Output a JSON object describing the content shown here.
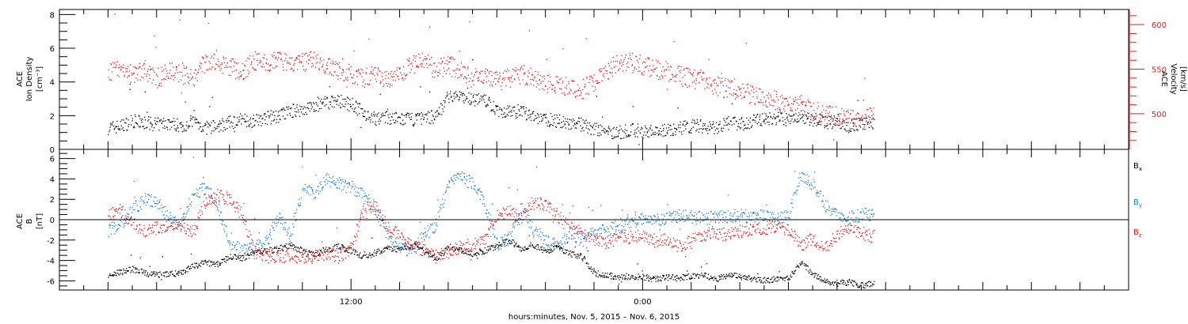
{
  "chart_data": [
    {
      "type": "scatter",
      "panel": "plasma",
      "ylabel": [
        "ACE",
        "Ion Density",
        "[cm⁻³]"
      ],
      "ylim": [
        0,
        8.3
      ],
      "yticks": [
        "0",
        "2",
        "4",
        "6",
        "8"
      ],
      "y2label": [
        "ACE",
        "Velocity",
        "[km/s]"
      ],
      "y2lim": [
        460,
        617
      ],
      "y2ticks": [
        "500",
        "550",
        "600"
      ],
      "grid": false,
      "series": [
        {
          "color": "#000000",
          "axis": "left",
          "x": [
            0,
            0.5,
            1,
            1.5,
            2,
            2.5,
            3,
            3.5,
            4,
            4.5,
            5,
            5.5,
            6,
            6.5,
            7,
            7.5,
            8,
            8.5,
            9,
            9.5,
            10,
            10.5,
            11,
            11.5,
            12,
            12.5,
            13,
            13.5,
            14,
            14.5,
            15,
            15.5,
            16,
            16.5,
            17,
            17.5,
            18,
            18.5,
            19,
            19.5,
            20,
            20.5,
            21,
            21.5,
            22,
            22.5,
            23,
            23.5,
            24,
            24.5,
            25,
            25.5,
            26,
            26.5,
            27,
            27.5,
            28,
            28.5,
            29,
            29.5,
            30,
            30.5,
            31,
            31.5
          ],
          "y": [
            1.3,
            1.4,
            1.7,
            1.6,
            1.5,
            1.6,
            1.4,
            1.7,
            1.3,
            1.4,
            1.6,
            1.8,
            1.7,
            1.9,
            2.0,
            2.3,
            2.4,
            2.6,
            2.8,
            2.9,
            2.7,
            2.2,
            1.8,
            1.9,
            1.8,
            1.8,
            1.9,
            2.0,
            3.2,
            3.1,
            3.0,
            2.9,
            2.4,
            2.2,
            2.3,
            1.9,
            1.8,
            1.7,
            1.6,
            1.5,
            1.2,
            1.1,
            1.0,
            1.2,
            1.1,
            1.1,
            1.2,
            1.3,
            1.4,
            1.4,
            1.3,
            1.6,
            1.5,
            1.7,
            1.8,
            1.9,
            1.7,
            2.0,
            1.8,
            1.6,
            1.7,
            1.4,
            1.6,
            1.5
          ]
        },
        {
          "color": "#e8191c",
          "axis": "right",
          "x": [
            0,
            0.5,
            1,
            1.5,
            2,
            2.5,
            3,
            3.5,
            4,
            4.5,
            5,
            5.5,
            6,
            6.5,
            7,
            7.5,
            8,
            8.5,
            9,
            9.5,
            10,
            10.5,
            11,
            11.5,
            12,
            12.5,
            13,
            13.5,
            14,
            14.5,
            15,
            15.5,
            16,
            16.5,
            17,
            17.5,
            18,
            18.5,
            19,
            19.5,
            20,
            20.5,
            21,
            21.5,
            22,
            22.5,
            23,
            23.5,
            24,
            24.5,
            25,
            25.5,
            26,
            26.5,
            27,
            27.5,
            28,
            28.5,
            29,
            29.5,
            30,
            30.5,
            31,
            31.5
          ],
          "y": [
            548,
            552,
            545,
            550,
            540,
            548,
            545,
            540,
            560,
            555,
            552,
            548,
            560,
            557,
            560,
            555,
            558,
            560,
            556,
            548,
            545,
            540,
            543,
            538,
            545,
            555,
            558,
            550,
            555,
            548,
            540,
            545,
            537,
            541,
            546,
            540,
            535,
            533,
            530,
            528,
            537,
            548,
            560,
            558,
            555,
            550,
            548,
            543,
            540,
            538,
            532,
            528,
            525,
            522,
            518,
            515,
            510,
            512,
            505,
            500,
            498,
            495,
            492,
            500
          ]
        }
      ]
    },
    {
      "type": "scatter",
      "panel": "magnetic field",
      "ylabel": [
        "ACE",
        "B",
        "[nT]"
      ],
      "ylim": [
        -6.9,
        6.9
      ],
      "yticks": [
        "-6",
        "-4",
        "-2",
        "0",
        "2",
        "4",
        "6"
      ],
      "zero_line": true,
      "legend": "right",
      "series": [
        {
          "name": "B",
          "sub": "x",
          "color": "#000000",
          "x": [
            0,
            0.5,
            1,
            1.5,
            2,
            2.5,
            3,
            3.5,
            4,
            4.5,
            5,
            5.5,
            6,
            6.5,
            7,
            7.5,
            8,
            8.5,
            9,
            9.5,
            10,
            10.5,
            11,
            11.5,
            12,
            12.5,
            13,
            13.5,
            14,
            14.5,
            15,
            15.5,
            16,
            16.5,
            17,
            17.5,
            18,
            18.5,
            19,
            19.5,
            20,
            20.5,
            21,
            21.5,
            22,
            22.5,
            23,
            23.5,
            24,
            24.5,
            25,
            25.5,
            26,
            26.5,
            27,
            27.5,
            28,
            28.5,
            29,
            29.5,
            30,
            30.5,
            31,
            31.5
          ],
          "y": [
            -5.4,
            -5.1,
            -4.8,
            -5.2,
            -5.4,
            -5.3,
            -5.2,
            -4.5,
            -4.2,
            -4.3,
            -3.6,
            -3.8,
            -3.2,
            -3.0,
            -2.8,
            -2.5,
            -3.0,
            -3.4,
            -2.9,
            -2.6,
            -3.0,
            -3.6,
            -3.2,
            -2.7,
            -2.9,
            -2.4,
            -3.0,
            -3.8,
            -2.6,
            -2.9,
            -3.4,
            -3.0,
            -2.5,
            -2.0,
            -2.8,
            -2.4,
            -3.1,
            -2.6,
            -3.3,
            -3.6,
            -5.2,
            -5.4,
            -5.6,
            -5.5,
            -5.6,
            -5.8,
            -5.6,
            -5.7,
            -5.5,
            -5.4,
            -5.8,
            -5.4,
            -5.5,
            -5.8,
            -5.9,
            -5.8,
            -5.6,
            -4.1,
            -5.3,
            -5.9,
            -6.2,
            -6.1,
            -6.4,
            -6.2
          ]
        },
        {
          "name": "B",
          "sub": "y",
          "color": "#1b7fd6",
          "x": [
            0,
            0.5,
            1,
            1.5,
            2,
            2.5,
            3,
            3.5,
            4,
            4.5,
            5,
            5.5,
            6,
            6.5,
            7,
            7.5,
            8,
            8.5,
            9,
            9.5,
            10,
            10.5,
            11,
            11.5,
            12,
            12.5,
            13,
            13.5,
            14,
            14.5,
            15,
            15.5,
            16,
            16.5,
            17,
            17.5,
            18,
            18.5,
            19,
            19.5,
            20,
            20.5,
            21,
            21.5,
            22,
            22.5,
            23,
            23.5,
            24,
            24.5,
            25,
            25.5,
            26,
            26.5,
            27,
            27.5,
            28,
            28.5,
            29,
            29.5,
            30,
            30.5,
            31,
            31.5
          ],
          "y": [
            -1.0,
            -0.4,
            1.0,
            2.0,
            1.8,
            0.2,
            -0.4,
            2.6,
            3.2,
            1.4,
            -2.2,
            -3.0,
            -2.5,
            -2.3,
            0.4,
            -1.5,
            3.0,
            2.6,
            4.0,
            3.6,
            3.2,
            2.5,
            1.0,
            -1.5,
            -2.8,
            -3.0,
            -1.4,
            -0.5,
            3.8,
            4.2,
            3.6,
            1.5,
            -2.4,
            -1.8,
            1.2,
            -1.0,
            -2.0,
            -2.6,
            -1.2,
            -2.0,
            -1.2,
            -1.0,
            -0.6,
            -0.3,
            0.2,
            0.0,
            0.2,
            0.4,
            0.3,
            0.2,
            0.3,
            0.4,
            0.5,
            0.3,
            0.4,
            0.0,
            0.5,
            4.5,
            3.5,
            1.5,
            0.5,
            0.2,
            0.5,
            0.6
          ]
        },
        {
          "name": "B",
          "sub": "z",
          "color": "#e8191c",
          "x": [
            0,
            0.5,
            1,
            1.5,
            2,
            2.5,
            3,
            3.5,
            4,
            4.5,
            5,
            5.5,
            6,
            6.5,
            7,
            7.5,
            8,
            8.5,
            9,
            9.5,
            10,
            10.5,
            11,
            11.5,
            12,
            12.5,
            13,
            13.5,
            14,
            14.5,
            15,
            15.5,
            16,
            16.5,
            17,
            17.5,
            18,
            18.5,
            19,
            19.5,
            20,
            20.5,
            21,
            21.5,
            22,
            22.5,
            23,
            23.5,
            24,
            24.5,
            25,
            25.5,
            26,
            26.5,
            27,
            27.5,
            28,
            28.5,
            29,
            29.5,
            30,
            30.5,
            31,
            31.5
          ],
          "y": [
            0.4,
            1.0,
            -0.4,
            -1.0,
            -0.8,
            -0.6,
            -0.4,
            -1.2,
            1.8,
            2.4,
            2.0,
            0.6,
            -3.2,
            -3.4,
            -3.6,
            -3.4,
            -3.8,
            -3.6,
            -3.2,
            -3.6,
            -2.8,
            1.0,
            1.5,
            -0.8,
            -1.4,
            -2.6,
            -3.0,
            -3.6,
            -3.2,
            -2.6,
            -2.4,
            -2.0,
            0.5,
            1.0,
            0.0,
            2.0,
            1.5,
            0.4,
            -0.8,
            -1.2,
            -1.8,
            -2.2,
            -1.8,
            -1.6,
            -1.5,
            -2.0,
            -1.8,
            -2.6,
            -2.0,
            -1.4,
            -1.2,
            -1.5,
            -1.1,
            -0.9,
            -0.8,
            -0.6,
            -1.0,
            -2.5,
            -1.8,
            -2.8,
            -1.4,
            -0.8,
            -1.5,
            -1.6
          ]
        }
      ]
    }
  ],
  "x_axis": {
    "ticks": [
      {
        "hours": 10,
        "label": "12:00"
      },
      {
        "hours": 22,
        "label": "0:00"
      }
    ],
    "minor_step_hours": 1,
    "range_hours": [
      -2,
      42
    ],
    "label": "hours:minutes, Nov.  5, 2015 – Nov.  6, 2015"
  }
}
